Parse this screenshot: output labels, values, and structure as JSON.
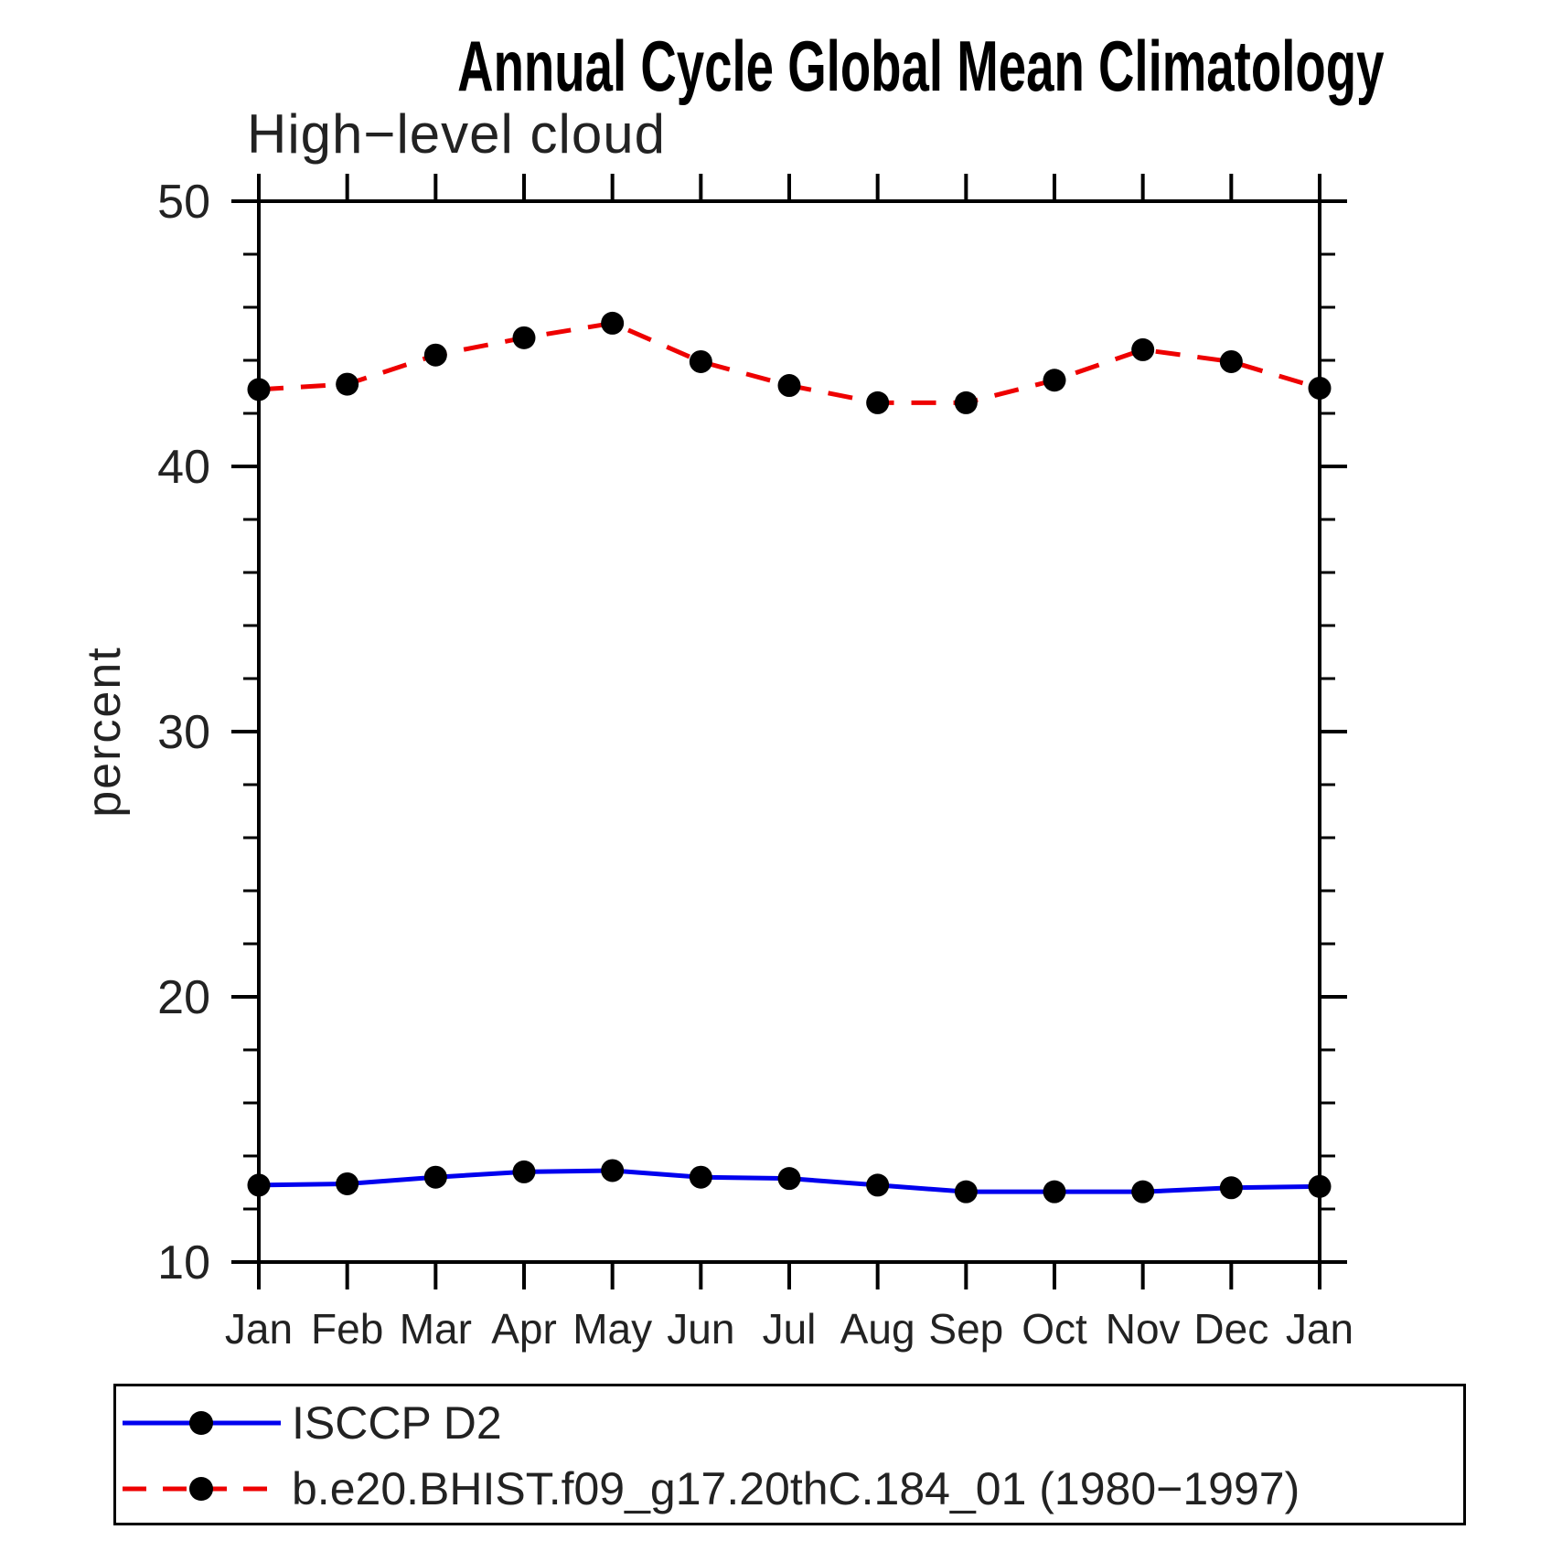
{
  "title": "Annual Cycle Global Mean Climatology",
  "subtitle": "High−level cloud",
  "y_axis_title": "percent",
  "legend": {
    "entries": [
      {
        "label": "ISCCP D2",
        "color": "#0000ee",
        "style": "solid",
        "marker_color": "#000000"
      },
      {
        "label": "b.e20.BHIST.f09_g17.20thC.184_01 (1980−1997)",
        "color": "#ee0000",
        "style": "dashed",
        "marker_color": "#000000"
      }
    ]
  },
  "chart_data": {
    "type": "line",
    "title": "Annual Cycle Global Mean Climatology",
    "subtitle": "High-level cloud",
    "xlabel": "",
    "ylabel": "percent",
    "categories": [
      "Jan",
      "Feb",
      "Mar",
      "Apr",
      "May",
      "Jun",
      "Jul",
      "Aug",
      "Sep",
      "Oct",
      "Nov",
      "Dec",
      "Jan"
    ],
    "series": [
      {
        "name": "ISCCP D2",
        "color": "#0000ee",
        "line_style": "solid",
        "marker": "circle",
        "marker_color": "#000000",
        "values": [
          12.9,
          12.95,
          13.2,
          13.4,
          13.45,
          13.2,
          13.15,
          12.9,
          12.65,
          12.65,
          12.65,
          12.8,
          12.85
        ]
      },
      {
        "name": "b.e20.BHIST.f09_g17.20thC.184_01 (1980-1997)",
        "color": "#ee0000",
        "line_style": "dashed",
        "marker": "circle",
        "marker_color": "#000000",
        "values": [
          42.9,
          43.1,
          44.2,
          44.85,
          45.4,
          43.95,
          43.05,
          42.4,
          42.4,
          43.25,
          44.4,
          43.95,
          42.95
        ]
      }
    ],
    "ylim": [
      10,
      50
    ],
    "yticks": [
      10,
      20,
      30,
      40,
      50
    ],
    "y_minor_tick_step": 2,
    "grid": false,
    "frame": true,
    "tick_direction": "out",
    "legend_position": "bottom-left-box"
  }
}
